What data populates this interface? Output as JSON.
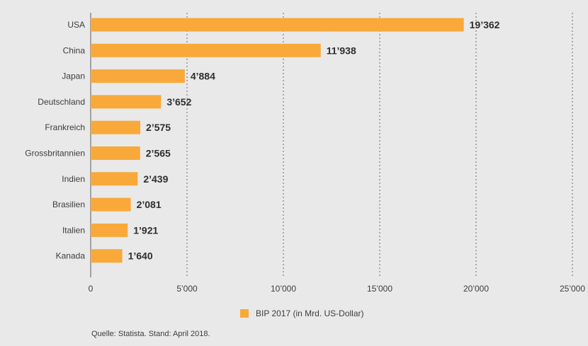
{
  "chart_data": {
    "type": "bar",
    "orientation": "horizontal",
    "categories": [
      "USA",
      "China",
      "Japan",
      "Deutschland",
      "Frankreich",
      "Grossbritannien",
      "Indien",
      "Brasilien",
      "Italien",
      "Kanada"
    ],
    "series": [
      {
        "name": "BIP 2017 (in Mrd. US-Dollar)",
        "values": [
          19362,
          11938,
          4884,
          3652,
          2575,
          2565,
          2439,
          2081,
          1921,
          1640
        ],
        "value_labels": [
          "19’362",
          "11’938",
          "4’884",
          "3’652",
          "2’575",
          "2’565",
          "2’439",
          "2’081",
          "1’921",
          "1’640"
        ]
      }
    ],
    "xlim": [
      0,
      25000
    ],
    "x_ticks": [
      0,
      5000,
      10000,
      15000,
      20000,
      25000
    ],
    "x_tick_labels": [
      "0",
      "5’000",
      "10’000",
      "15’000",
      "20’000",
      "25’000"
    ],
    "grid": "vertical dotted",
    "legend_position": "bottom-center",
    "bar_color": "#f8a93a"
  },
  "legend": {
    "label": "BIP 2017 (in Mrd. US-Dollar)"
  },
  "source": "Quelle: Statista. Stand: April 2018."
}
